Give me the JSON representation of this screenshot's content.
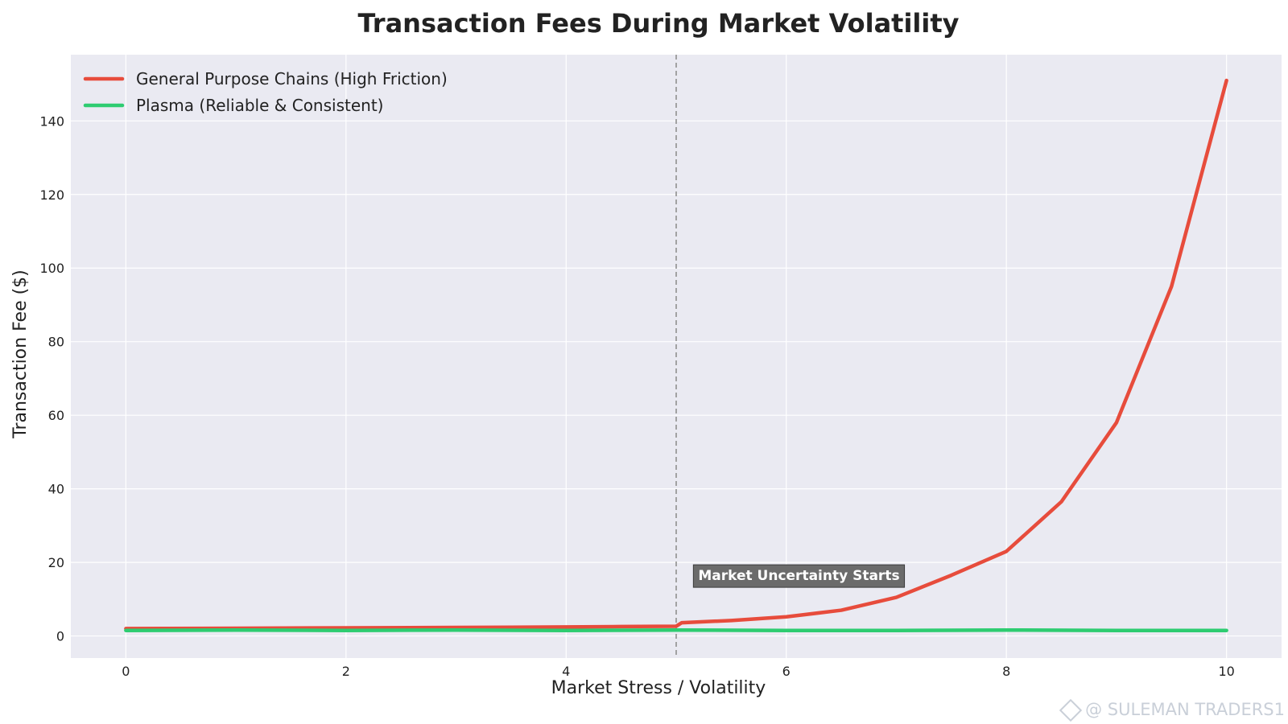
{
  "chart_data": {
    "type": "line",
    "title": "Transaction Fees During Market Volatility",
    "xlabel": "Market Stress / Volatility",
    "ylabel": "Transaction Fee ($)",
    "xlim": [
      -0.5,
      10.5
    ],
    "ylim": [
      -6,
      158
    ],
    "xticks": [
      0,
      2,
      4,
      6,
      8,
      10
    ],
    "yticks": [
      0,
      20,
      40,
      60,
      80,
      100,
      120,
      140
    ],
    "grid": true,
    "legend_position": "top-left",
    "background": "#eaeaf2",
    "series": [
      {
        "name": "General Purpose Chains (High Friction)",
        "color": "#e74c3c",
        "x": [
          0,
          1,
          2,
          3,
          4,
          4.5,
          5,
          5.05,
          5.5,
          6,
          6.5,
          7,
          7.5,
          8,
          8.5,
          9,
          9.5,
          10
        ],
        "y": [
          2.0,
          2.1,
          2.2,
          2.3,
          2.45,
          2.55,
          2.65,
          3.6,
          4.2,
          5.2,
          7.0,
          10.5,
          16.5,
          23.0,
          36.5,
          58.0,
          95.0,
          151.0
        ]
      },
      {
        "name": "Plasma (Reliable & Consistent)",
        "color": "#2ecc71",
        "x": [
          0,
          1,
          2,
          3,
          4,
          5,
          6,
          7,
          8,
          9,
          10
        ],
        "y": [
          1.5,
          1.6,
          1.5,
          1.6,
          1.5,
          1.6,
          1.5,
          1.5,
          1.6,
          1.5,
          1.5
        ]
      }
    ],
    "vline": {
      "x": 5,
      "style": "dashed",
      "color": "#9a9a9a"
    },
    "annotation": {
      "text": "Market Uncertainty Starts",
      "x": 5.2,
      "y": 16.5
    }
  },
  "watermark": "@ SULEMAN TRADERS1"
}
